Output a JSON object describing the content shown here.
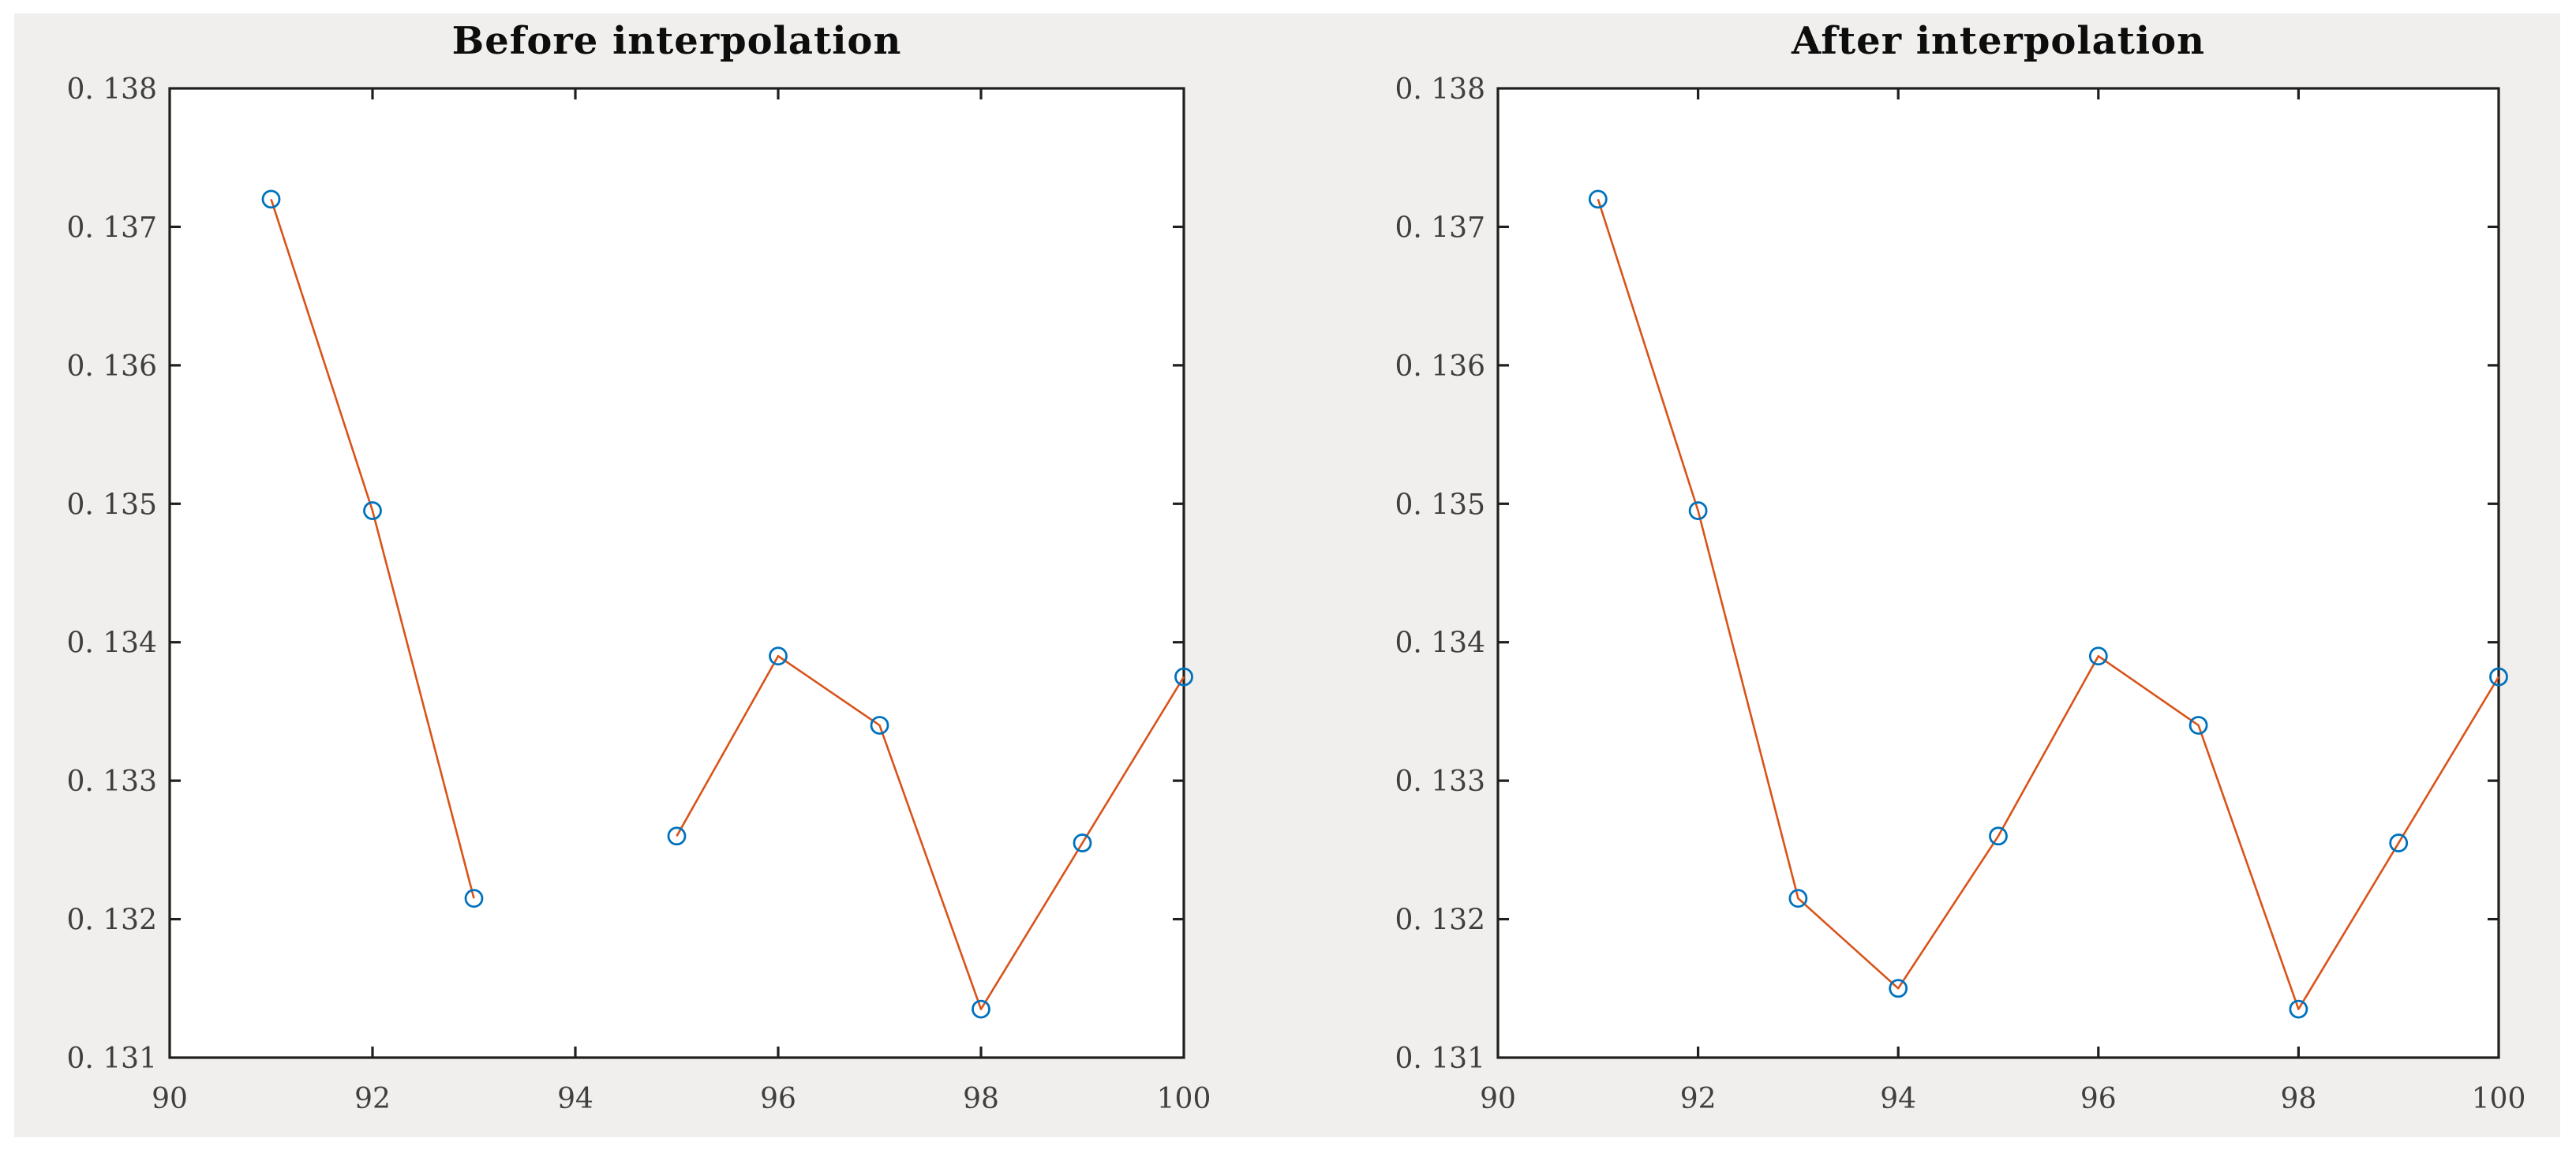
{
  "figure": {
    "page_background": "#ffffff",
    "figure_background": "#f0efed",
    "axes_background": "#ffffff",
    "frame_color": "#1f1f1f",
    "tick_color": "#1f1f1f",
    "tick_label_color": "#3f3f3f",
    "title_color": "#0d0d0d",
    "line_color": "#d95319",
    "marker_color": "#0072bd"
  },
  "chart_data": [
    {
      "type": "line",
      "title": "Before interpolation",
      "x": [
        91,
        92,
        93,
        94,
        95,
        96,
        97,
        98,
        99,
        100
      ],
      "y": [
        0.1372,
        0.13495,
        0.13215,
        null,
        0.1326,
        0.1339,
        0.1334,
        0.13135,
        0.13255,
        0.13375
      ],
      "marker": "open-circle",
      "grid": false,
      "legend": null,
      "xlim": [
        90,
        100
      ],
      "ylim": [
        0.131,
        0.138
      ],
      "xticks": [
        90,
        92,
        94,
        96,
        98,
        100
      ],
      "xtick_labels": [
        "90",
        "92",
        "94",
        "96",
        "98",
        "100"
      ],
      "yticks": [
        0.131,
        0.132,
        0.133,
        0.134,
        0.135,
        0.136,
        0.137,
        0.138
      ],
      "ytick_labels": [
        "0. 131",
        "0. 132",
        "0. 133",
        "0. 134",
        "0. 135",
        "0. 136",
        "0. 137",
        "0. 138"
      ]
    },
    {
      "type": "line",
      "title": "After interpolation",
      "x": [
        91,
        92,
        93,
        94,
        95,
        96,
        97,
        98,
        99,
        100
      ],
      "y": [
        0.1372,
        0.13495,
        0.13215,
        0.1315,
        0.1326,
        0.1339,
        0.1334,
        0.13135,
        0.13255,
        0.13375
      ],
      "marker": "open-circle",
      "grid": false,
      "legend": null,
      "xlim": [
        90,
        100
      ],
      "ylim": [
        0.131,
        0.138
      ],
      "xticks": [
        90,
        92,
        94,
        96,
        98,
        100
      ],
      "xtick_labels": [
        "90",
        "92",
        "94",
        "96",
        "98",
        "100"
      ],
      "yticks": [
        0.131,
        0.132,
        0.133,
        0.134,
        0.135,
        0.136,
        0.137,
        0.138
      ],
      "ytick_labels": [
        "0. 131",
        "0. 132",
        "0. 133",
        "0. 134",
        "0. 135",
        "0. 136",
        "0. 137",
        "0. 138"
      ]
    }
  ]
}
